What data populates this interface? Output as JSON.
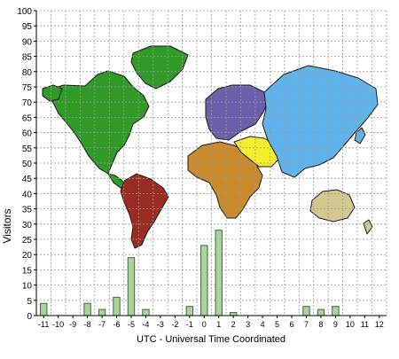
{
  "chart_data": {
    "type": "bar",
    "title": "",
    "xlabel": "UTC - Universal Time Coordinated",
    "ylabel": "Visitors",
    "ylim": [
      0,
      100
    ],
    "y_ticks": [
      0,
      5,
      10,
      15,
      20,
      25,
      30,
      35,
      40,
      45,
      50,
      55,
      60,
      65,
      70,
      75,
      80,
      85,
      90,
      95,
      100
    ],
    "categories": [
      "-11",
      "-10",
      "-9",
      "-8",
      "-7",
      "-6",
      "-5",
      "-4",
      "-3",
      "-2",
      "-1",
      "0",
      "1",
      "2",
      "3",
      "4",
      "5",
      "6",
      "7",
      "8",
      "9",
      "10",
      "11",
      "12"
    ],
    "values": [
      4,
      0,
      0,
      4,
      2,
      6,
      19,
      2,
      0,
      0,
      3,
      23,
      28,
      1,
      0,
      0,
      0,
      0,
      3,
      2,
      3,
      0,
      0,
      0
    ],
    "grid": true,
    "legend": "none",
    "background": "world map with continents colored by region",
    "colors": {
      "bar_fill": "#a9d39a",
      "bar_stroke": "#3f6b36",
      "grid": "#9a9a9a",
      "axis": "#000000",
      "text": "#000000",
      "north_america": "#2f9a26",
      "south_america": "#9b2c22",
      "greenland": "#2f9a26",
      "europe": "#6a5fa8",
      "africa": "#c98a2c",
      "middle_east": "#f4ef2a",
      "asia": "#5fb3ea",
      "australia": "#d2c890",
      "outline": "#1a1a1a"
    }
  }
}
